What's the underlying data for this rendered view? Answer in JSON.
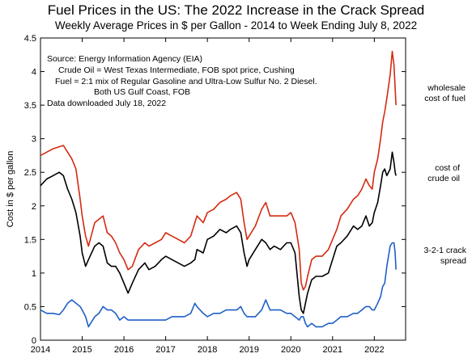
{
  "chart_data": {
    "type": "line",
    "title": "Fuel Prices in the US: The 2022 Increase in the Crack Spread",
    "subtitle": "Weekly Average Prices in $ per Gallon - 2014 to Week Ending July 8, 2022",
    "xlabel": "",
    "ylabel": "Cost in $ per gallon",
    "xlim": [
      2014,
      2022.75
    ],
    "ylim": [
      0,
      4.5
    ],
    "x_ticks": [
      "2014",
      "2015",
      "2016",
      "2017",
      "2018",
      "2019",
      "2020",
      "2021",
      "2022"
    ],
    "y_ticks": [
      "0",
      "0.5",
      "1",
      "1.5",
      "2",
      "2.5",
      "3",
      "3.5",
      "4",
      "4.5"
    ],
    "grid": false,
    "annotations": [
      "Source:  Energy Information Agency (EIA)",
      "Crude Oil = West Texas Intermediate, FOB spot price, Cushing",
      "Fuel = 2:1 mix of Regular Gasoline and Ultra-Low Sulfur No. 2 Diesel.",
      "Both US Gulf Coast, FOB",
      "Data downloaded July 18, 2022"
    ],
    "series": [
      {
        "name": "wholesale cost of fuel",
        "label_lines": [
          "wholesale",
          "cost of fuel"
        ],
        "color": "#d42a10",
        "x": [
          2014.0,
          2014.15,
          2014.3,
          2014.45,
          2014.55,
          2014.65,
          2014.75,
          2014.85,
          2014.95,
          2015.0,
          2015.08,
          2015.15,
          2015.3,
          2015.4,
          2015.5,
          2015.6,
          2015.7,
          2015.8,
          2015.9,
          2016.0,
          2016.1,
          2016.2,
          2016.35,
          2016.5,
          2016.6,
          2016.75,
          2016.9,
          2017.0,
          2017.15,
          2017.3,
          2017.45,
          2017.6,
          2017.7,
          2017.75,
          2017.9,
          2018.0,
          2018.15,
          2018.3,
          2018.45,
          2018.55,
          2018.7,
          2018.8,
          2018.88,
          2018.95,
          2019.0,
          2019.15,
          2019.3,
          2019.4,
          2019.5,
          2019.6,
          2019.75,
          2019.9,
          2020.0,
          2020.1,
          2020.2,
          2020.25,
          2020.3,
          2020.35,
          2020.4,
          2020.5,
          2020.6,
          2020.75,
          2020.9,
          2021.0,
          2021.1,
          2021.2,
          2021.35,
          2021.5,
          2021.6,
          2021.7,
          2021.8,
          2021.88,
          2021.95,
          2022.0,
          2022.08,
          2022.15,
          2022.2,
          2022.25,
          2022.3,
          2022.38,
          2022.43,
          2022.47,
          2022.5,
          2022.52
        ],
        "values": [
          2.75,
          2.8,
          2.85,
          2.88,
          2.9,
          2.8,
          2.7,
          2.55,
          2.1,
          1.85,
          1.55,
          1.4,
          1.75,
          1.8,
          1.85,
          1.6,
          1.55,
          1.45,
          1.3,
          1.2,
          1.05,
          1.1,
          1.35,
          1.45,
          1.4,
          1.45,
          1.5,
          1.6,
          1.55,
          1.5,
          1.45,
          1.55,
          1.75,
          1.85,
          1.75,
          1.9,
          1.95,
          2.05,
          2.1,
          2.15,
          2.2,
          2.1,
          1.75,
          1.5,
          1.55,
          1.7,
          1.95,
          2.05,
          1.85,
          1.85,
          1.85,
          1.85,
          1.9,
          1.75,
          1.35,
          0.85,
          0.75,
          0.8,
          0.95,
          1.2,
          1.25,
          1.25,
          1.35,
          1.5,
          1.65,
          1.85,
          1.95,
          2.1,
          2.15,
          2.25,
          2.4,
          2.3,
          2.25,
          2.5,
          2.7,
          3.0,
          3.25,
          3.4,
          3.6,
          3.95,
          4.3,
          4.1,
          3.75,
          3.5
        ]
      },
      {
        "name": "cost of crude oil",
        "label_lines": [
          "cost of",
          "crude oil"
        ],
        "color": "#000000",
        "x": [
          2014.0,
          2014.15,
          2014.3,
          2014.45,
          2014.55,
          2014.65,
          2014.75,
          2014.85,
          2014.95,
          2015.0,
          2015.08,
          2015.15,
          2015.3,
          2015.4,
          2015.5,
          2015.6,
          2015.7,
          2015.8,
          2015.9,
          2016.0,
          2016.1,
          2016.2,
          2016.35,
          2016.5,
          2016.6,
          2016.75,
          2016.9,
          2017.0,
          2017.15,
          2017.3,
          2017.45,
          2017.6,
          2017.7,
          2017.75,
          2017.9,
          2018.0,
          2018.15,
          2018.3,
          2018.45,
          2018.55,
          2018.7,
          2018.8,
          2018.88,
          2018.95,
          2019.0,
          2019.15,
          2019.3,
          2019.4,
          2019.5,
          2019.6,
          2019.75,
          2019.9,
          2020.0,
          2020.1,
          2020.2,
          2020.25,
          2020.3,
          2020.35,
          2020.4,
          2020.5,
          2020.6,
          2020.75,
          2020.9,
          2021.0,
          2021.1,
          2021.2,
          2021.35,
          2021.5,
          2021.6,
          2021.7,
          2021.8,
          2021.88,
          2021.95,
          2022.0,
          2022.08,
          2022.15,
          2022.2,
          2022.25,
          2022.3,
          2022.38,
          2022.43,
          2022.47,
          2022.5,
          2022.52
        ],
        "values": [
          2.3,
          2.4,
          2.45,
          2.5,
          2.45,
          2.25,
          2.1,
          1.9,
          1.55,
          1.3,
          1.1,
          1.2,
          1.4,
          1.45,
          1.4,
          1.15,
          1.1,
          1.1,
          1.0,
          0.85,
          0.7,
          0.85,
          1.05,
          1.15,
          1.05,
          1.1,
          1.2,
          1.25,
          1.2,
          1.15,
          1.1,
          1.15,
          1.2,
          1.35,
          1.3,
          1.5,
          1.55,
          1.65,
          1.6,
          1.65,
          1.7,
          1.6,
          1.3,
          1.1,
          1.2,
          1.35,
          1.5,
          1.45,
          1.35,
          1.4,
          1.35,
          1.45,
          1.45,
          1.3,
          0.65,
          0.45,
          0.4,
          0.55,
          0.7,
          0.9,
          0.95,
          0.95,
          1.0,
          1.2,
          1.4,
          1.45,
          1.55,
          1.7,
          1.65,
          1.7,
          1.85,
          1.7,
          1.75,
          1.9,
          2.05,
          2.3,
          2.5,
          2.55,
          2.45,
          2.55,
          2.8,
          2.65,
          2.5,
          2.45
        ]
      },
      {
        "name": "3-2-1 crack spread",
        "label_lines": [
          "3-2-1 crack",
          "spread"
        ],
        "color": "#1f5fc8",
        "x": [
          2014.0,
          2014.15,
          2014.3,
          2014.45,
          2014.55,
          2014.65,
          2014.75,
          2014.85,
          2014.95,
          2015.0,
          2015.08,
          2015.15,
          2015.3,
          2015.4,
          2015.5,
          2015.6,
          2015.7,
          2015.8,
          2015.9,
          2016.0,
          2016.1,
          2016.2,
          2016.35,
          2016.5,
          2016.6,
          2016.75,
          2016.9,
          2017.0,
          2017.15,
          2017.3,
          2017.45,
          2017.6,
          2017.7,
          2017.75,
          2017.9,
          2018.0,
          2018.15,
          2018.3,
          2018.45,
          2018.55,
          2018.7,
          2018.8,
          2018.88,
          2018.95,
          2019.0,
          2019.15,
          2019.3,
          2019.4,
          2019.5,
          2019.6,
          2019.75,
          2019.9,
          2020.0,
          2020.1,
          2020.2,
          2020.25,
          2020.3,
          2020.35,
          2020.4,
          2020.5,
          2020.6,
          2020.75,
          2020.9,
          2021.0,
          2021.1,
          2021.2,
          2021.35,
          2021.5,
          2021.6,
          2021.7,
          2021.8,
          2021.88,
          2021.95,
          2022.0,
          2022.08,
          2022.15,
          2022.2,
          2022.25,
          2022.3,
          2022.38,
          2022.43,
          2022.47,
          2022.5,
          2022.52
        ],
        "values": [
          0.45,
          0.4,
          0.4,
          0.38,
          0.45,
          0.55,
          0.6,
          0.55,
          0.5,
          0.45,
          0.35,
          0.2,
          0.35,
          0.4,
          0.5,
          0.45,
          0.45,
          0.4,
          0.3,
          0.35,
          0.3,
          0.3,
          0.3,
          0.3,
          0.3,
          0.3,
          0.3,
          0.3,
          0.35,
          0.35,
          0.35,
          0.4,
          0.55,
          0.5,
          0.4,
          0.35,
          0.4,
          0.4,
          0.45,
          0.45,
          0.45,
          0.5,
          0.4,
          0.35,
          0.35,
          0.35,
          0.45,
          0.6,
          0.45,
          0.45,
          0.45,
          0.4,
          0.4,
          0.35,
          0.3,
          0.35,
          0.35,
          0.25,
          0.2,
          0.25,
          0.2,
          0.2,
          0.25,
          0.25,
          0.3,
          0.35,
          0.35,
          0.4,
          0.4,
          0.45,
          0.5,
          0.5,
          0.45,
          0.45,
          0.55,
          0.65,
          0.8,
          0.85,
          1.1,
          1.4,
          1.45,
          1.45,
          1.3,
          1.05
        ]
      }
    ]
  }
}
